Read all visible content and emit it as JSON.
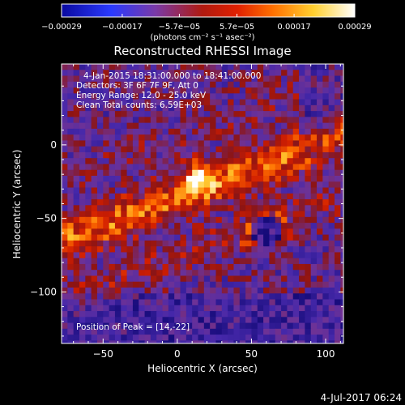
{
  "chart_data": {
    "type": "heatmap",
    "title": "Reconstructed RHESSI Image",
    "xlabel": "Heliocentric X (arcsec)",
    "ylabel": "Heliocentric Y (arcsec)",
    "xlim": [
      -78,
      112
    ],
    "ylim": [
      -135,
      55
    ],
    "xticks": [
      -50,
      0,
      50,
      100
    ],
    "xtick_labels": [
      "−50",
      "0",
      "50",
      "100"
    ],
    "yticks": [
      0,
      -50,
      -100
    ],
    "ytick_labels": [
      "0",
      "−50",
      "−100"
    ],
    "colorbar": {
      "range": [
        -0.00029,
        0.00029
      ],
      "ticks": [
        -0.00029,
        -0.00017,
        -5.7e-05,
        5.7e-05,
        0.00017,
        0.00029
      ],
      "tick_labels": [
        "−0.00029",
        "−0.00017",
        "−5.7e−05",
        "5.7e−05",
        "0.00017",
        "0.00029"
      ],
      "units": "(photons cm⁻² s⁻¹ asec⁻²)"
    },
    "annotations": [
      "4-Jan-2015 18:31:00.000 to 18:41:00.000",
      "Detectors: 3F 6F 7F 9F, Att 0",
      "Energy Range: 12.0 - 25.0 keV",
      "Clean    Total counts: 6.59E+03"
    ],
    "peak_label": "Position of Peak = [14,-22]",
    "peak_position": [
      14,
      -22
    ],
    "total_counts": 6590,
    "energy_range_kev": [
      12.0,
      25.0
    ],
    "pixel_size_arcsec": 4,
    "structure_notes": "diagonal bright ridges (NW–SE tilt) from lower-left to upper-right; peak near [14,-22]; ring feature near [60,-60]"
  },
  "footer": {
    "timestamp": "4-Jul-2017 06:24"
  }
}
